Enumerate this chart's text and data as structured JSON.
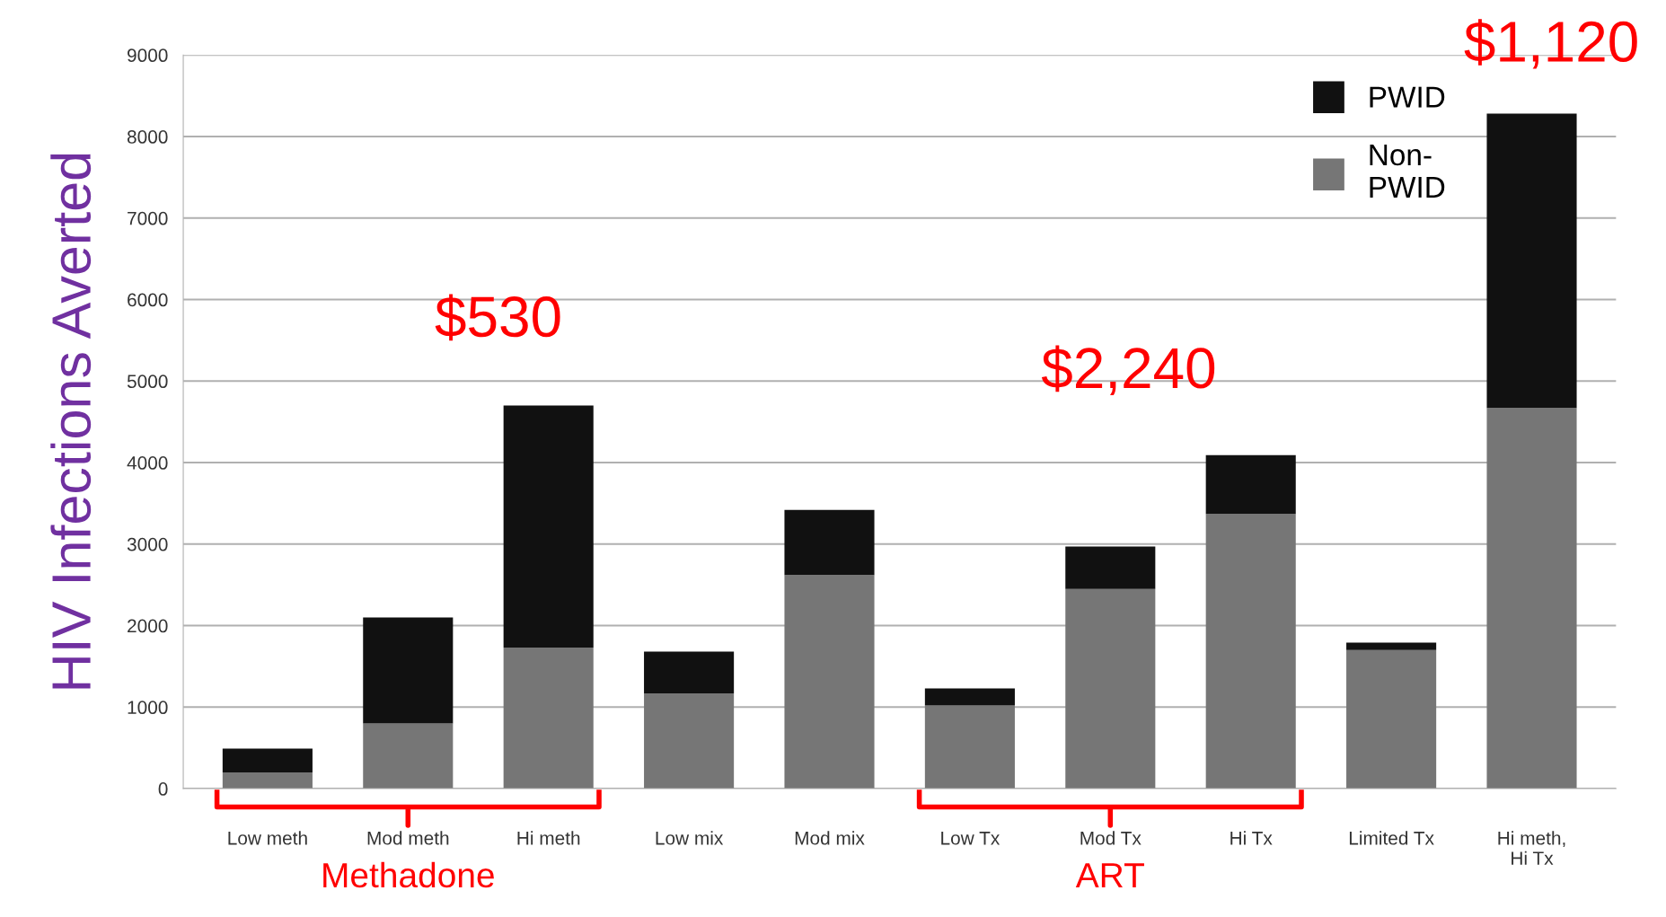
{
  "chart_data": {
    "type": "bar",
    "stacked": true,
    "ylabel": "HIV Infections Averted",
    "categories": [
      "Low meth",
      "Mod meth",
      "Hi meth",
      "Low mix",
      "Mod mix",
      "Low Tx",
      "Mod Tx",
      "Hi Tx",
      "Limited Tx",
      "Hi meth,\nHi Tx"
    ],
    "series": [
      {
        "name": "Non-\nPWID",
        "color": "#767676",
        "values": [
          200,
          800,
          1730,
          1170,
          2620,
          1020,
          2450,
          3370,
          1700,
          4670
        ]
      },
      {
        "name": "PWID",
        "color": "#111111",
        "values": [
          290,
          1300,
          2970,
          510,
          800,
          210,
          520,
          720,
          90,
          3610
        ]
      }
    ],
    "ylim": [
      0,
      9000
    ],
    "yticks": [
      0,
      1000,
      2000,
      3000,
      4000,
      5000,
      6000,
      7000,
      8000,
      9000
    ],
    "grid": "y",
    "legend": "top right",
    "annotations": [
      "$530",
      "$2,240",
      "$1,120",
      "Methadone",
      "ART"
    ]
  }
}
